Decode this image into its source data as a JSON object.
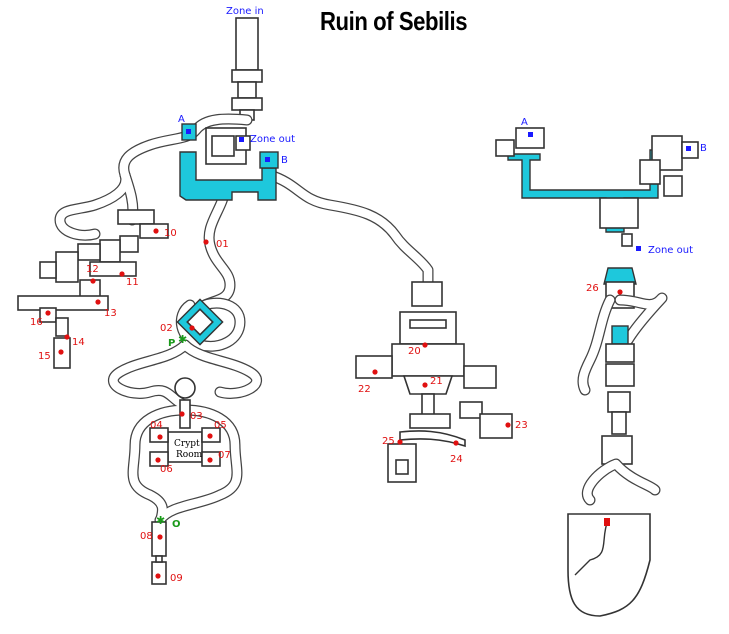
{
  "map": {
    "title": "Ruin of Sebilis",
    "zone_in": "Zone in",
    "zone_out_left": "Zone out",
    "zone_out_right": "Zone out",
    "crypt_room_line1": "Crypt",
    "crypt_room_line2": "Room",
    "portal_left": {
      "a": "A",
      "b": "B"
    },
    "portal_right": {
      "a": "A",
      "b": "B"
    },
    "markers_green": [
      "P",
      "O"
    ],
    "locations": [
      "01",
      "02",
      "03",
      "04",
      "05",
      "06",
      "07",
      "08",
      "09",
      "10",
      "11",
      "12",
      "13",
      "14",
      "15",
      "16",
      "20",
      "21",
      "22",
      "23",
      "24",
      "25",
      "26"
    ]
  },
  "colors": {
    "water": "#1ec8dc",
    "marker": "#e01010",
    "portal": "#1a1aff",
    "green_marker": "#1a9a1a"
  }
}
